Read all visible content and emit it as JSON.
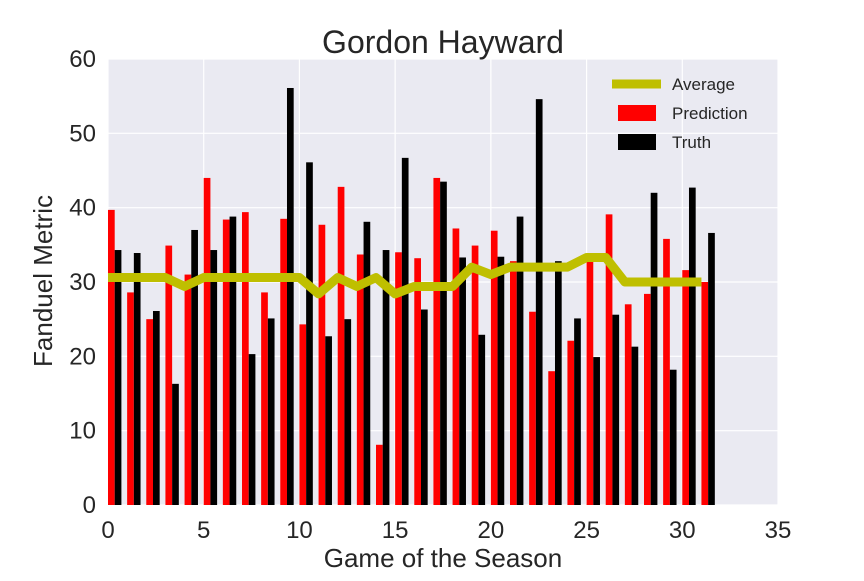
{
  "chart_data": {
    "type": "bar",
    "title": "Gordon Hayward",
    "xlabel": "Game of the Season",
    "ylabel": "Fanduel Metric",
    "xlim": [
      0,
      35
    ],
    "ylim": [
      0,
      60
    ],
    "xticks": [
      0,
      5,
      10,
      15,
      20,
      25,
      30,
      35
    ],
    "yticks": [
      0,
      10,
      20,
      30,
      40,
      50,
      60
    ],
    "grid": true,
    "legend_position": "top-right",
    "x": [
      0,
      1,
      2,
      3,
      4,
      5,
      6,
      7,
      8,
      9,
      10,
      11,
      12,
      13,
      14,
      15,
      16,
      17,
      18,
      19,
      20,
      21,
      22,
      23,
      24,
      25,
      26,
      27,
      28,
      29,
      30,
      31
    ],
    "series": [
      {
        "name": "Prediction",
        "kind": "bar",
        "color": "#ff0000",
        "values": [
          39.7,
          28.6,
          25.0,
          34.9,
          31.0,
          44.0,
          38.4,
          39.4,
          28.6,
          38.5,
          24.3,
          37.7,
          42.8,
          33.7,
          8.1,
          34.0,
          33.2,
          44.0,
          37.2,
          34.9,
          36.9,
          32.8,
          26.0,
          18.0,
          22.1,
          32.9,
          39.1,
          27.0,
          28.4,
          35.8,
          31.6,
          30.0
        ]
      },
      {
        "name": "Truth",
        "kind": "bar",
        "color": "#000000",
        "values": [
          34.3,
          33.9,
          26.1,
          16.3,
          37.0,
          34.3,
          38.8,
          20.3,
          25.1,
          56.1,
          46.1,
          22.7,
          25.0,
          38.1,
          34.3,
          46.7,
          26.3,
          43.5,
          33.3,
          22.9,
          33.4,
          38.8,
          54.6,
          32.8,
          25.1,
          19.9,
          25.6,
          21.3,
          42.0,
          18.2,
          42.7,
          36.6
        ]
      },
      {
        "name": "Average",
        "kind": "line",
        "color": "#bfbf00",
        "values": [
          30.6,
          30.6,
          30.6,
          30.6,
          29.4,
          30.6,
          30.6,
          30.6,
          30.6,
          30.6,
          30.6,
          28.4,
          30.6,
          29.4,
          30.6,
          28.4,
          29.4,
          29.4,
          29.4,
          32.0,
          31.0,
          32.0,
          32.0,
          32.0,
          32.0,
          33.3,
          33.3,
          30.0,
          30.0,
          30.0,
          30.0,
          30.0
        ]
      }
    ]
  }
}
